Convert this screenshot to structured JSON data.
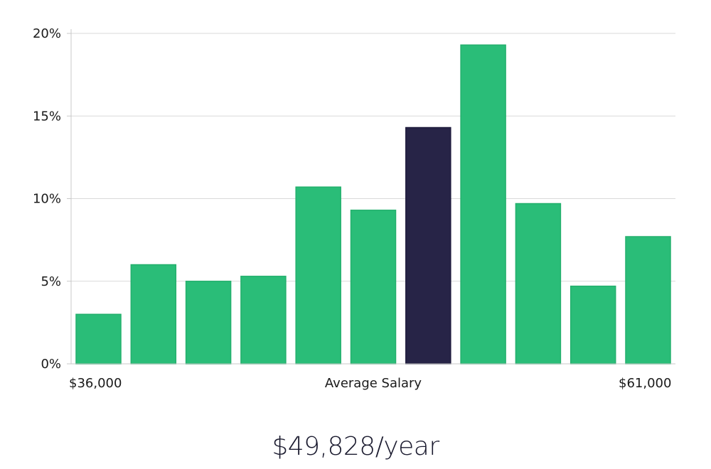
{
  "chart_data": {
    "type": "bar",
    "categories": [
      "",
      "",
      "",
      "",
      "",
      "",
      "",
      "",
      "",
      "",
      ""
    ],
    "values": [
      3.0,
      6.0,
      5.0,
      5.3,
      10.7,
      9.3,
      14.3,
      19.3,
      9.7,
      4.7,
      7.7
    ],
    "highlight_index": 6,
    "ylim": [
      0,
      20
    ],
    "y_ticks": [
      "0%",
      "5%",
      "10%",
      "15%",
      "20%"
    ],
    "y_tick_values": [
      0,
      5,
      10,
      15,
      20
    ],
    "grid": true,
    "xlabel": "Average Salary",
    "x_min_label": "$36,000",
    "x_max_label": "$61,000",
    "title": "$49,828/year",
    "colors": {
      "bar": "#2abd78",
      "highlight": "#272447",
      "grid": "#d9d9d9",
      "axis": "#c8c8c8"
    }
  }
}
